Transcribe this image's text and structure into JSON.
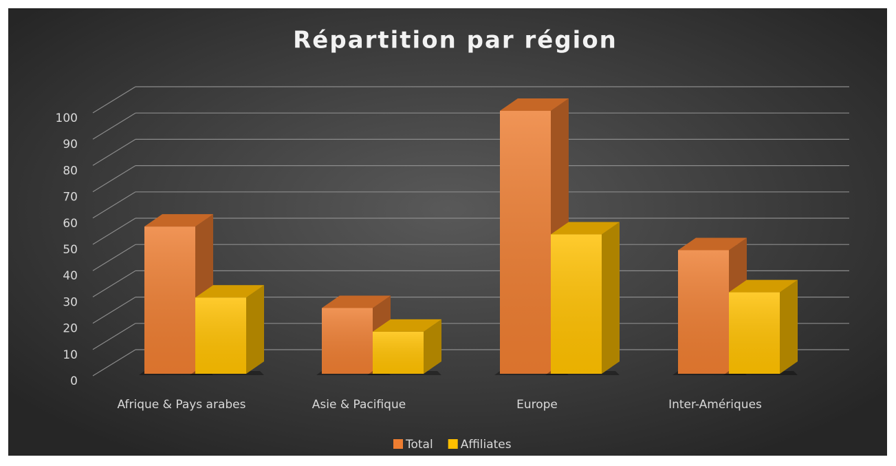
{
  "chart_data": {
    "type": "bar3d",
    "title": "Répartition par région",
    "categories": [
      "Afrique & Pays arabes",
      "Asie & Pacifique",
      "Europe",
      "Inter-Amériques"
    ],
    "series": [
      {
        "name": "Total",
        "color": "#ed7d31",
        "values": [
          56,
          25,
          100,
          47
        ]
      },
      {
        "name": "Affiliates",
        "color": "#ffc000",
        "values": [
          29,
          16,
          53,
          31
        ]
      }
    ],
    "ylim": [
      0,
      100
    ],
    "yticks": [
      0,
      10,
      20,
      30,
      40,
      50,
      60,
      70,
      80,
      90,
      100
    ],
    "grid": true,
    "legend": "bottom"
  }
}
